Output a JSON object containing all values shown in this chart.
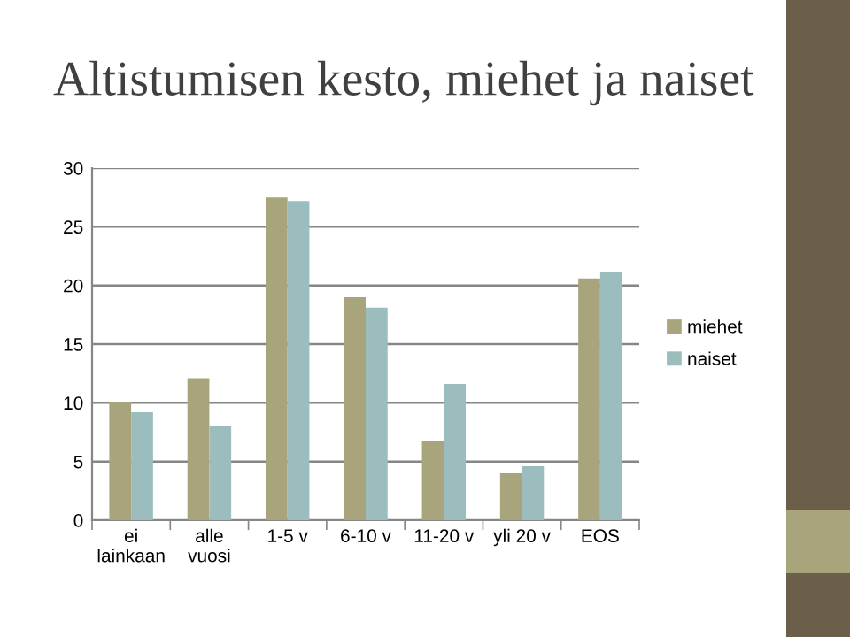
{
  "chart_data": {
    "type": "bar",
    "title": "Altistumisen kesto, miehet ja naiset",
    "categories": [
      "ei\nlainkaan",
      "alle\nvuosi",
      "1-5 v",
      "6-10 v",
      "11-20 v",
      "yli 20 v",
      "EOS"
    ],
    "series": [
      {
        "name": "miehet",
        "color": "#a8a47c",
        "values": [
          10.1,
          12.1,
          27.5,
          19.0,
          6.7,
          4.0,
          20.6
        ]
      },
      {
        "name": "naiset",
        "color": "#9bbdbd",
        "values": [
          9.2,
          8.0,
          27.2,
          18.1,
          11.6,
          4.6,
          21.1
        ]
      }
    ],
    "ylim": [
      0,
      30
    ],
    "yticks": [
      0,
      5,
      10,
      15,
      20,
      25,
      30
    ],
    "grid": "y",
    "legend": "right"
  }
}
